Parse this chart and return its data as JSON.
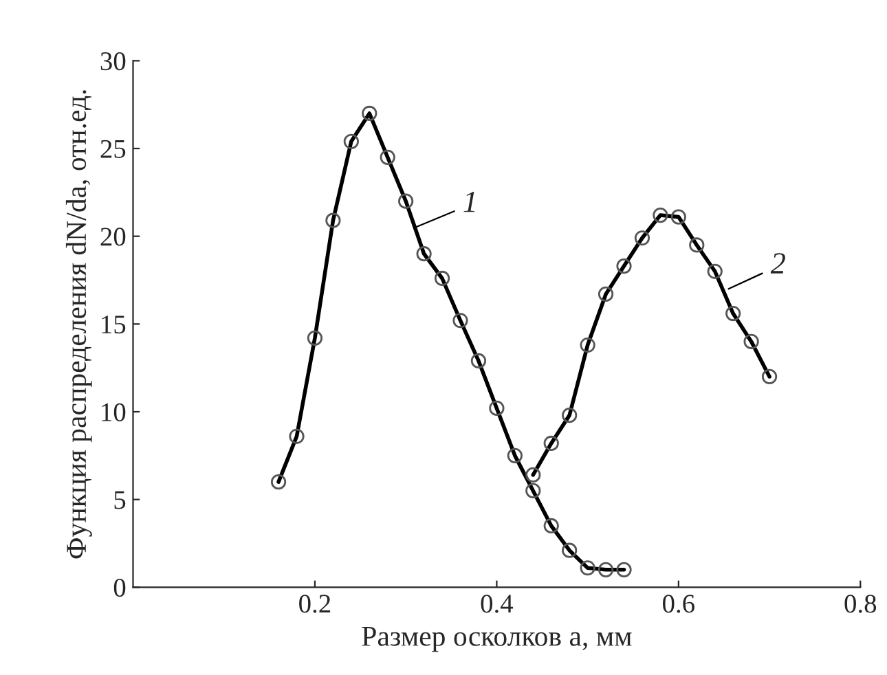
{
  "chart_data": {
    "type": "line",
    "xlabel": "Размер осколков a, мм",
    "ylabel": "Функция распределения dN/da, отн.ед.",
    "xlim": [
      0,
      0.8
    ],
    "xticks": [
      0.2,
      0.4,
      0.6,
      0.8
    ],
    "ylim": [
      0,
      30
    ],
    "yticks": [
      0,
      5,
      10,
      15,
      20,
      25,
      30
    ],
    "grid": false,
    "legend": false,
    "marker": "circle",
    "line_style": "solid",
    "series": [
      {
        "color": "#000000",
        "x": [
          0.16,
          0.18,
          0.2,
          0.22,
          0.24,
          0.26,
          0.28,
          0.3,
          0.32,
          0.34,
          0.36,
          0.38,
          0.4,
          0.42,
          0.44,
          0.46,
          0.48,
          0.5,
          0.52,
          0.54
        ],
        "values": [
          6,
          8.6,
          14.2,
          20.9,
          25.4,
          27,
          24.5,
          22,
          19,
          17.6,
          15.2,
          12.9,
          10.2,
          7.5,
          5.5,
          3.5,
          2.1,
          1.1,
          1.0,
          1.0
        ]
      },
      {
        "color": "#000000",
        "x": [
          0.44,
          0.46,
          0.48,
          0.5,
          0.52,
          0.54,
          0.56,
          0.58,
          0.6,
          0.62,
          0.64,
          0.66,
          0.68,
          0.7
        ],
        "values": [
          6.4,
          8.2,
          9.8,
          13.8,
          16.7,
          18.3,
          19.9,
          21.2,
          21.1,
          19.5,
          18,
          15.6,
          14,
          12
        ]
      }
    ],
    "annotations": [
      {
        "text": "1",
        "x": 0.31,
        "y": 20.5
      },
      {
        "text": "2",
        "x": 0.655,
        "y": 17
      }
    ]
  }
}
